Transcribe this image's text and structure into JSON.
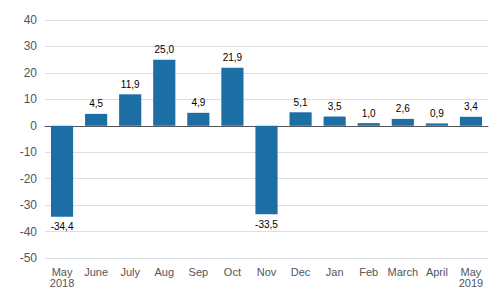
{
  "chart_data": {
    "type": "bar",
    "categories": [
      "May\n2018",
      "June",
      "July",
      "Aug",
      "Sep",
      "Oct",
      "Nov",
      "Dec",
      "Jan",
      "Feb",
      "March",
      "April",
      "May\n2019"
    ],
    "values": [
      -34.4,
      4.5,
      11.9,
      25.0,
      4.9,
      21.9,
      -33.5,
      5.1,
      3.5,
      1.0,
      2.6,
      0.9,
      3.4
    ],
    "value_labels": [
      "-34,4",
      "4,5",
      "11,9",
      "25,0",
      "4,9",
      "21,9",
      "-33,5",
      "5,1",
      "3,5",
      "1,0",
      "2,6",
      "0,9",
      "3,4"
    ],
    "data_labels": true,
    "color": "#1C6EA4",
    "ylim": [
      -50,
      40
    ],
    "yticks": [
      -50,
      -40,
      -30,
      -20,
      -10,
      0,
      10,
      20,
      30,
      40
    ],
    "grid": true
  }
}
